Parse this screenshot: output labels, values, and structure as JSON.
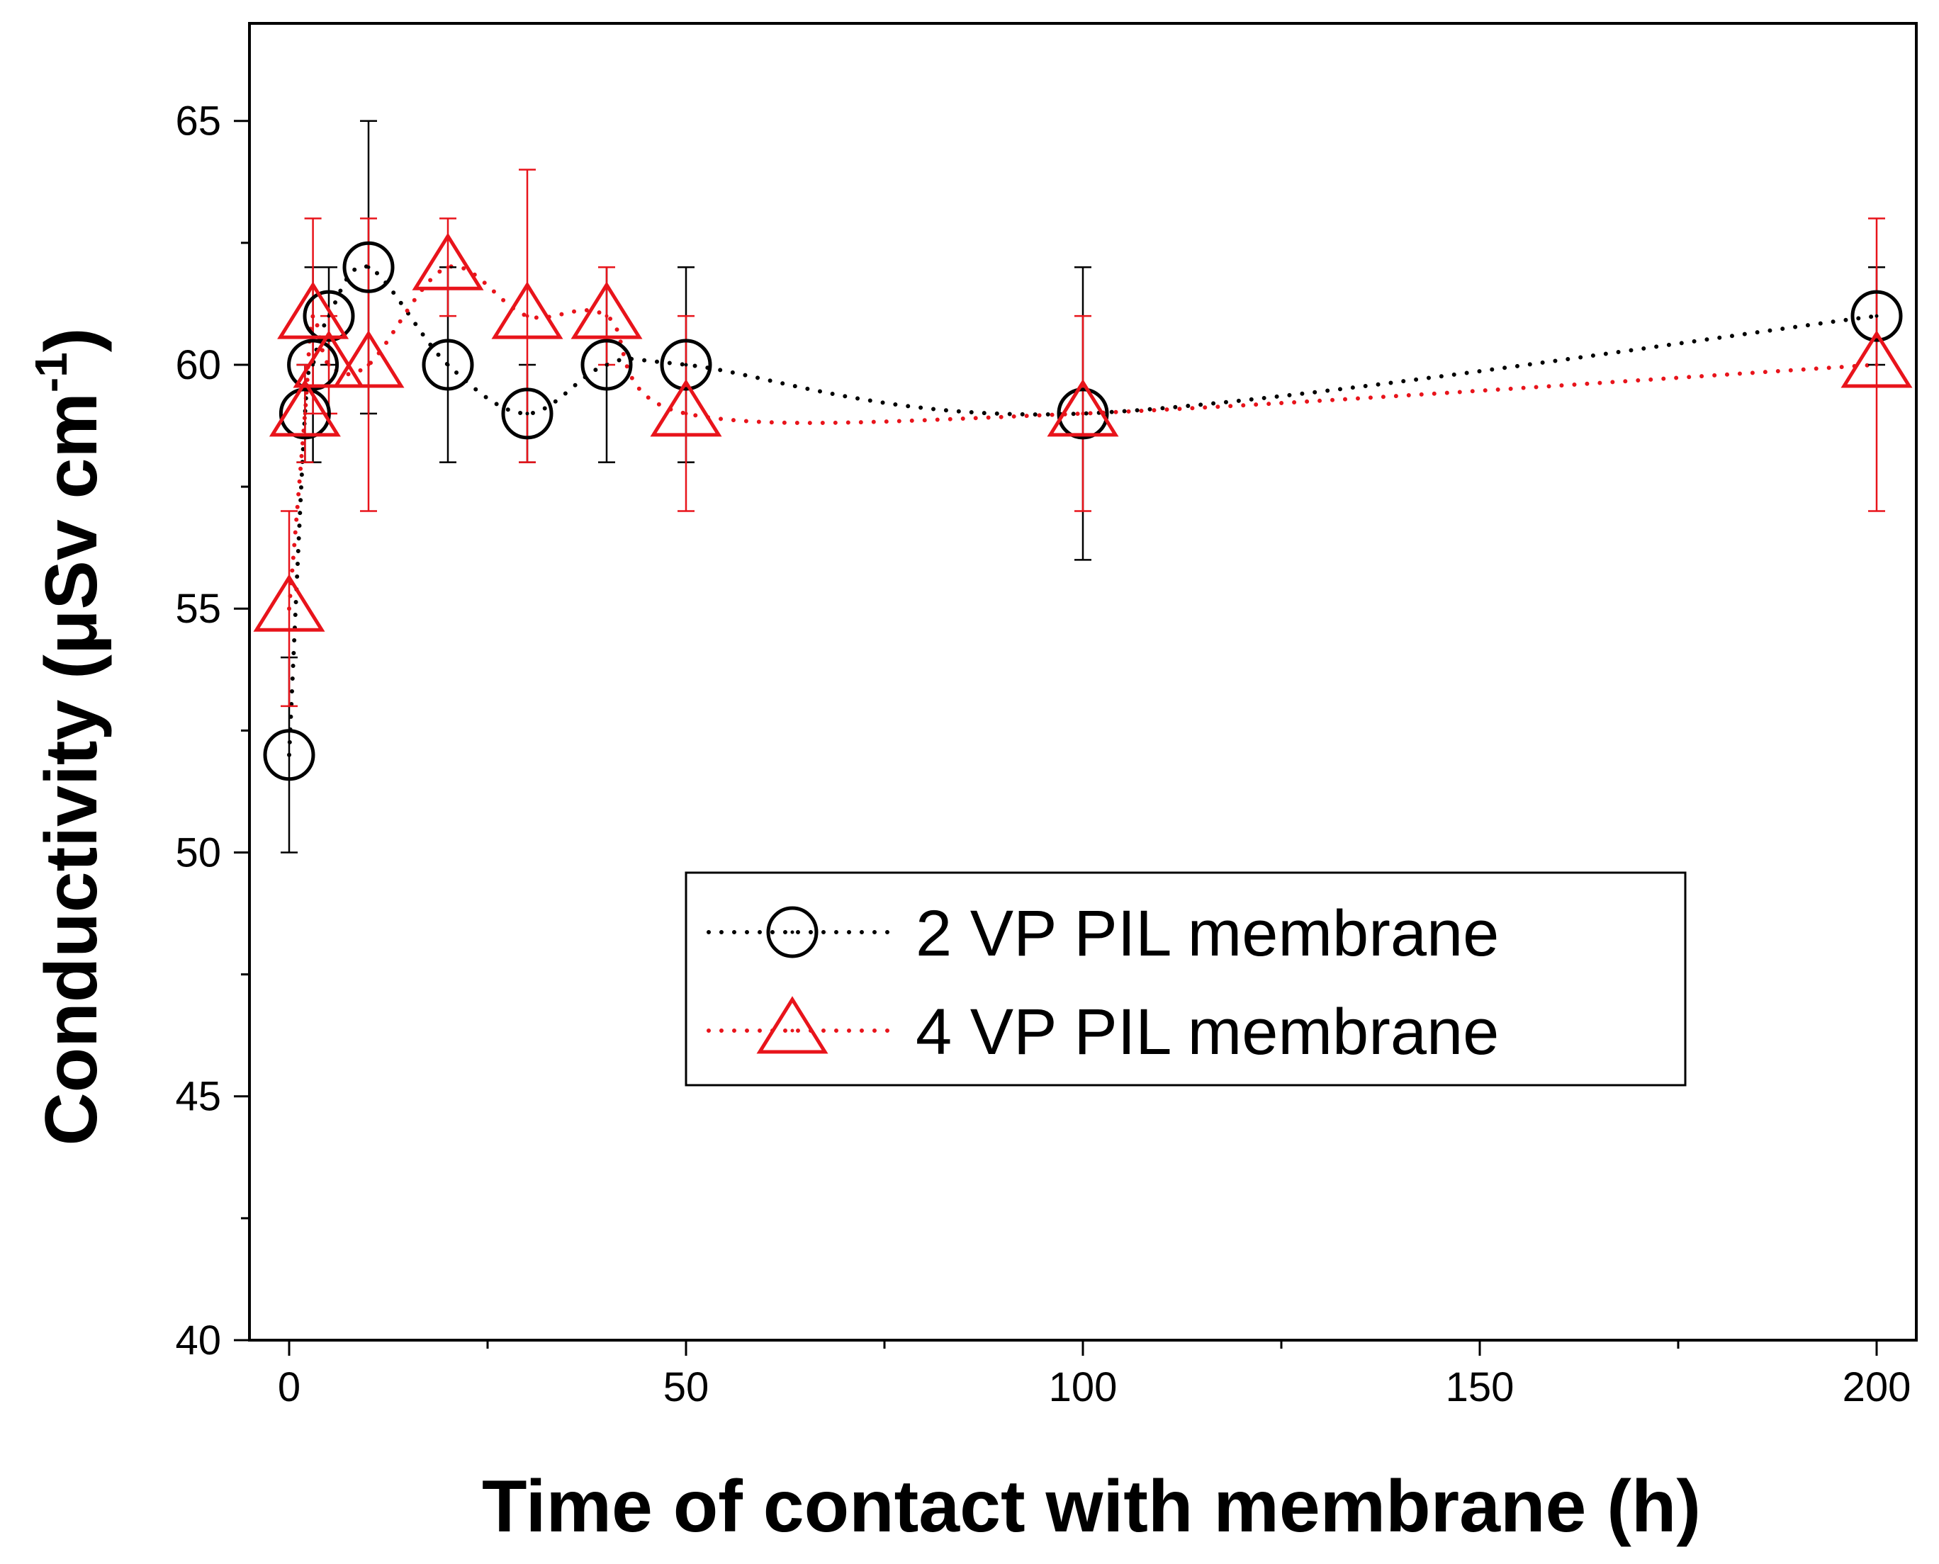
{
  "chart_data": {
    "type": "scatter",
    "xlabel": "Time of contact with membrane (h)",
    "ylabel": "Conductivity (μSv cm",
    "ylabel_sup": "-1",
    "ylabel_close": ")",
    "xlim": [
      -5,
      205
    ],
    "ylim": [
      40,
      67
    ],
    "x_major_ticks": [
      0,
      50,
      100,
      150,
      200
    ],
    "x_minor_ticks": [
      25,
      75,
      125,
      175
    ],
    "y_major_ticks": [
      40,
      45,
      50,
      55,
      60,
      65
    ],
    "y_minor_ticks": [
      42.5,
      47.5,
      52.5,
      57.5,
      62.5
    ],
    "grid": false,
    "legend_position": "center-right",
    "series": [
      {
        "name": "2 VP PIL membrane",
        "marker": "circle",
        "color": "#000000",
        "x": [
          0,
          2,
          3,
          5,
          10,
          20,
          30,
          40,
          50,
          100,
          200
        ],
        "y": [
          52,
          59,
          60,
          61,
          62,
          60,
          59,
          60,
          60,
          59,
          61
        ],
        "yerr": [
          2,
          1,
          2,
          1,
          3,
          2,
          1,
          2,
          2,
          3,
          1
        ]
      },
      {
        "name": "4 VP PIL membrane",
        "marker": "triangle",
        "color": "#e8141b",
        "x": [
          0,
          2,
          3,
          5,
          10,
          20,
          30,
          40,
          50,
          100,
          200
        ],
        "y": [
          55,
          59,
          61,
          60,
          60,
          62,
          61,
          61,
          59,
          59,
          60
        ],
        "yerr": [
          2,
          1,
          2,
          1,
          3,
          1,
          3,
          1,
          2,
          2,
          3
        ]
      }
    ]
  }
}
